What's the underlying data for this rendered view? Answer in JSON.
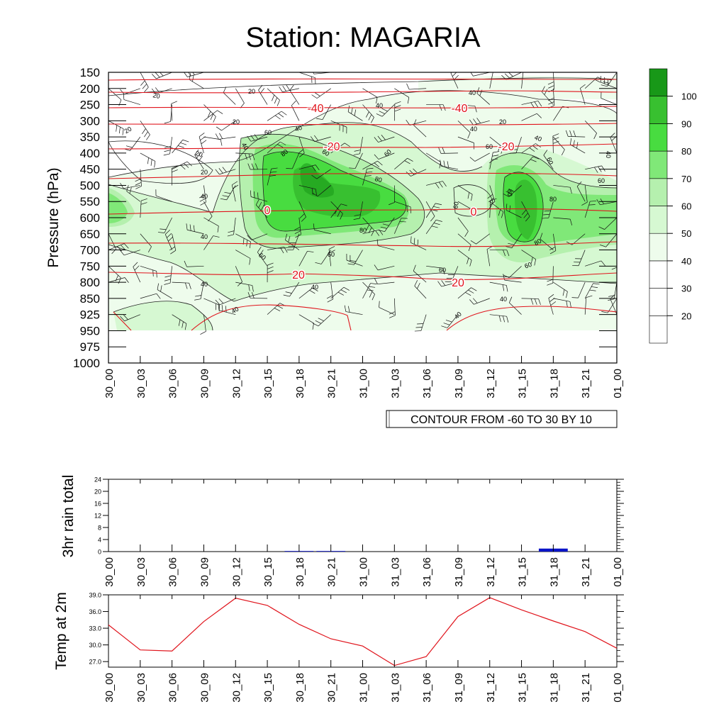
{
  "title": "Station: MAGARIA",
  "time_labels": [
    "30_00",
    "30_03",
    "30_06",
    "30_09",
    "30_12",
    "30_15",
    "30_18",
    "30_21",
    "31_00",
    "31_03",
    "31_06",
    "31_09",
    "31_12",
    "31_15",
    "31_18",
    "31_21",
    "01_00"
  ],
  "colors": {
    "green_scale": [
      "#ffffff",
      "#ffffff",
      "#ffffff",
      "#eefcec",
      "#d6f8d2",
      "#b5f0ae",
      "#80e878",
      "#48dc40",
      "#38c030",
      "#189818"
    ],
    "temp_contour": "#e0141c",
    "rain_bar": "#0a14c8",
    "temp_line": "#e0141c"
  },
  "chart_data": [
    {
      "type": "heatmap",
      "ylabel": "Pressure (hPa)",
      "pressure_levels": [
        150,
        200,
        250,
        300,
        350,
        400,
        450,
        500,
        550,
        600,
        650,
        700,
        750,
        800,
        850,
        925,
        950,
        975,
        1000
      ],
      "x_ticks": [
        "30_00",
        "30_03",
        "30_06",
        "30_09",
        "30_12",
        "30_15",
        "30_18",
        "30_21",
        "31_00",
        "31_03",
        "31_06",
        "31_09",
        "31_12",
        "31_15",
        "31_18",
        "31_21",
        "01_00"
      ],
      "colorbar": {
        "labels": [
          20,
          30,
          40,
          50,
          60,
          70,
          80,
          90,
          100
        ],
        "colors": [
          "#ffffff",
          "#ffffff",
          "#ffffff",
          "#eefcec",
          "#d6f8d2",
          "#b5f0ae",
          "#80e878",
          "#48dc40",
          "#38c030",
          "#189818"
        ]
      },
      "humidity_contour_labels": [
        20,
        40,
        60,
        80
      ],
      "temperature_contour_labels": [
        -40,
        -20,
        0,
        20
      ],
      "contour_info": "CONTOUR FROM -60 TO 30 BY 10"
    },
    {
      "type": "bar",
      "ylabel": "3hr rain total",
      "ylim": [
        0,
        24
      ],
      "yticks": [
        0,
        4,
        8,
        12,
        16,
        20,
        24
      ],
      "categories": [
        "30_00",
        "30_03",
        "30_06",
        "30_09",
        "30_12",
        "30_15",
        "30_18",
        "30_21",
        "31_00",
        "31_03",
        "31_06",
        "31_09",
        "31_12",
        "31_15",
        "31_18",
        "31_21",
        "01_00"
      ],
      "values": [
        0,
        0,
        0,
        0,
        0,
        0,
        0.2,
        0.2,
        0,
        0,
        0,
        0,
        0,
        0,
        1.0,
        0,
        0
      ]
    },
    {
      "type": "line",
      "ylabel": "Temp at 2m",
      "ylim": [
        26,
        39
      ],
      "yticks": [
        "27.0",
        "30.0",
        "33.0",
        "36.0",
        "39.0"
      ],
      "categories": [
        "30_00",
        "30_03",
        "30_06",
        "30_09",
        "30_12",
        "30_15",
        "30_18",
        "30_21",
        "31_00",
        "31_03",
        "31_06",
        "31_09",
        "31_12",
        "31_15",
        "31_18",
        "31_21",
        "01_00"
      ],
      "values": [
        33.6,
        29.1,
        28.9,
        34.2,
        38.4,
        37.1,
        33.7,
        31.1,
        29.8,
        26.3,
        27.9,
        35.1,
        38.5,
        36.3,
        34.3,
        32.4,
        29.4
      ]
    }
  ]
}
